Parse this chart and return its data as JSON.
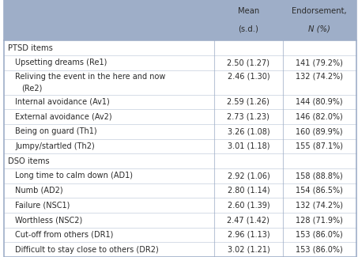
{
  "header_bg": "#9eaec8",
  "header_text_color": "#2c2c2c",
  "body_bg": "#ffffff",
  "border_color": "#9eaec8",
  "rows": [
    {
      "label": "PTSD items",
      "is_section": true,
      "mean_sd": "",
      "endorsement": ""
    },
    {
      "label": "Upsetting dreams (Re1)",
      "is_section": false,
      "mean_sd": "2.50 (1.27)",
      "endorsement": "141 (79.2%)",
      "multiline": false
    },
    {
      "label": "Reliving the event in the here and now",
      "label2": "(Re2)",
      "is_section": false,
      "mean_sd": "2.46 (1.30)",
      "endorsement": "132 (74.2%)",
      "multiline": true
    },
    {
      "label": "Internal avoidance (Av1)",
      "is_section": false,
      "mean_sd": "2.59 (1.26)",
      "endorsement": "144 (80.9%)",
      "multiline": false
    },
    {
      "label": "External avoidance (Av2)",
      "is_section": false,
      "mean_sd": "2.73 (1.23)",
      "endorsement": "146 (82.0%)",
      "multiline": false
    },
    {
      "label": "Being on guard (Th1)",
      "is_section": false,
      "mean_sd": "3.26 (1.08)",
      "endorsement": "160 (89.9%)",
      "multiline": false
    },
    {
      "label": "Jumpy/startled (Th2)",
      "is_section": false,
      "mean_sd": "3.01 (1.18)",
      "endorsement": "155 (87.1%)",
      "multiline": false
    },
    {
      "label": "DSO items",
      "is_section": true,
      "mean_sd": "",
      "endorsement": ""
    },
    {
      "label": "Long time to calm down (AD1)",
      "is_section": false,
      "mean_sd": "2.92 (1.06)",
      "endorsement": "158 (88.8%)",
      "multiline": false
    },
    {
      "label": "Numb (AD2)",
      "is_section": false,
      "mean_sd": "2.80 (1.14)",
      "endorsement": "154 (86.5%)",
      "multiline": false
    },
    {
      "label": "Failure (NSC1)",
      "is_section": false,
      "mean_sd": "2.60 (1.39)",
      "endorsement": "132 (74.2%)",
      "multiline": false
    },
    {
      "label": "Worthless (NSC2)",
      "is_section": false,
      "mean_sd": "2.47 (1.42)",
      "endorsement": "128 (71.9%)",
      "multiline": false
    },
    {
      "label": "Cut-off from others (DR1)",
      "is_section": false,
      "mean_sd": "2.96 (1.13)",
      "endorsement": "153 (86.0%)",
      "multiline": false
    },
    {
      "label": "Difficult to stay close to others (DR2)",
      "is_section": false,
      "mean_sd": "3.02 (1.21)",
      "endorsement": "153 (86.0%)",
      "multiline": false
    }
  ],
  "figsize": [
    4.53,
    3.25
  ],
  "dpi": 100
}
